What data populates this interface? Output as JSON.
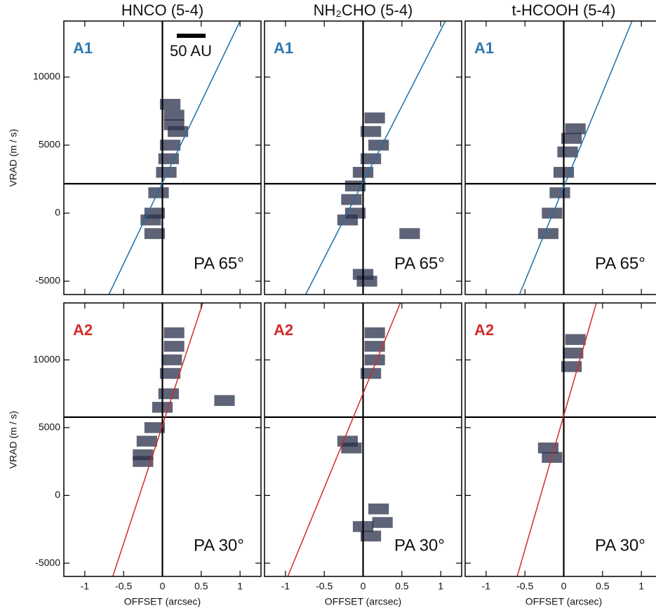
{
  "chart_data": [
    {
      "type": "scatter",
      "title": "HNCO (5-4)",
      "label": "A1",
      "label_color": "#2e78b0",
      "annotation": "PA 65°",
      "scale_bar": "50 AU",
      "ylabel": "VRAD (m / s)",
      "xlim": [
        -1.27,
        1.27
      ],
      "ylim": [
        -5980,
        14120
      ],
      "xticks": [
        -1,
        -0.5,
        0,
        0.5,
        1
      ],
      "yticks": [
        -5000,
        0,
        5000,
        10000
      ],
      "center_velocity": 2165,
      "color": "#2a2f4a",
      "x": [
        0.15,
        0.2,
        0.1,
        0.08,
        0.05,
        -0.05,
        -0.1,
        -0.15,
        -0.1,
        0.15,
        0.1
      ],
      "values": [
        6500,
        6000,
        5000,
        4000,
        3000,
        1500,
        0,
        -500,
        -1500,
        7200,
        8000
      ],
      "fit": {
        "color": "#1f6fa8",
        "x": [
          -0.69,
          1.0
        ],
        "values": [
          -5980,
          14120
        ]
      }
    },
    {
      "type": "scatter",
      "title": "NH₂CHO (5-4)",
      "label": "A1",
      "label_color": "#2e78b0",
      "annotation": "PA 65°",
      "xlim": [
        -1.27,
        1.27
      ],
      "ylim": [
        -5980,
        14120
      ],
      "xticks": [
        -1,
        -0.5,
        0,
        0.5,
        1
      ],
      "yticks": [
        -5000,
        0,
        5000,
        10000
      ],
      "center_velocity": 2165,
      "color": "#2a2f4a",
      "x": [
        0.15,
        0.1,
        0.2,
        0.1,
        0,
        -0.1,
        -0.15,
        -0.1,
        -0.2,
        0,
        0.05,
        0.6
      ],
      "values": [
        7000,
        6000,
        5000,
        4000,
        3000,
        2000,
        1000,
        0,
        -500,
        -4500,
        -5000,
        -1500
      ],
      "fit": {
        "color": "#1f6fa8",
        "x": [
          -0.74,
          1.06
        ],
        "values": [
          -5980,
          14120
        ]
      }
    },
    {
      "type": "scatter",
      "title": "t-HCOOH (5-4)",
      "label": "A1",
      "label_color": "#2e78b0",
      "annotation": "PA 65°",
      "xlim": [
        -1.27,
        1.27
      ],
      "ylim": [
        -5980,
        14120
      ],
      "xticks": [
        -1,
        -0.5,
        0,
        0.5,
        1
      ],
      "yticks": [
        -5000,
        0,
        5000,
        10000
      ],
      "center_velocity": 2165,
      "color": "#2a2f4a",
      "x": [
        0.15,
        0.1,
        0.05,
        0,
        -0.05,
        -0.15,
        -0.2
      ],
      "values": [
        6200,
        5500,
        4500,
        3000,
        1500,
        0,
        -1500
      ],
      "fit": {
        "color": "#1f6fa8",
        "x": [
          -0.57,
          0.88
        ],
        "values": [
          -5980,
          14120
        ]
      }
    },
    {
      "type": "scatter",
      "label": "A2",
      "label_color": "#d42a2a",
      "annotation": "PA 30°",
      "ylabel": "VRAD (m / s)",
      "xlabel": "OFFSET (arcsec)",
      "xlim": [
        -1.27,
        1.27
      ],
      "ylim": [
        -5980,
        14200
      ],
      "xticks": [
        -1,
        -0.5,
        0,
        0.5,
        1
      ],
      "yticks": [
        -5000,
        0,
        5000,
        10000
      ],
      "center_velocity": 5773,
      "color": "#2a2f4a",
      "x": [
        0.15,
        0.15,
        0.12,
        0.1,
        0.08,
        0,
        -0.1,
        -0.2,
        -0.25,
        -0.25,
        0.8
      ],
      "values": [
        12000,
        11000,
        10000,
        9000,
        7500,
        6500,
        5000,
        4000,
        3000,
        2500,
        7000
      ],
      "fit": {
        "color": "#d42a2a",
        "x": [
          -0.64,
          0.52
        ],
        "values": [
          -5980,
          14200
        ]
      }
    },
    {
      "type": "scatter",
      "label": "A2",
      "label_color": "#d42a2a",
      "annotation": "PA 30°",
      "xlabel": "OFFSET (arcsec)",
      "xlim": [
        -1.27,
        1.27
      ],
      "ylim": [
        -5980,
        14200
      ],
      "xticks": [
        -1,
        -0.5,
        0,
        0.5,
        1
      ],
      "yticks": [
        -5000,
        0,
        5000,
        10000
      ],
      "center_velocity": 5773,
      "color": "#2a2f4a",
      "x": [
        0.15,
        0.15,
        0.15,
        0.1,
        -0.2,
        -0.15,
        0.2,
        0.25,
        0,
        0.1
      ],
      "values": [
        12000,
        11000,
        10000,
        9000,
        4000,
        3500,
        -1000,
        -2000,
        -2300,
        -3000
      ],
      "fit": {
        "color": "#d42a2a",
        "x": [
          -0.97,
          0.48
        ],
        "values": [
          -5980,
          14200
        ]
      }
    },
    {
      "type": "scatter",
      "label": "A2",
      "label_color": "#d42a2a",
      "annotation": "PA 30°",
      "xlabel": "OFFSET (arcsec)",
      "xlim": [
        -1.27,
        1.27
      ],
      "ylim": [
        -5980,
        14200
      ],
      "xticks": [
        -1,
        -0.5,
        0,
        0.5,
        1
      ],
      "yticks": [
        -5000,
        0,
        5000,
        10000
      ],
      "center_velocity": 5773,
      "color": "#2a2f4a",
      "x": [
        0.15,
        0.12,
        0.1,
        -0.2,
        -0.15
      ],
      "values": [
        11500,
        10500,
        9500,
        3500,
        2800
      ],
      "fit": {
        "color": "#d42a2a",
        "x": [
          -0.6,
          0.42
        ],
        "values": [
          -5980,
          14200
        ]
      }
    }
  ]
}
